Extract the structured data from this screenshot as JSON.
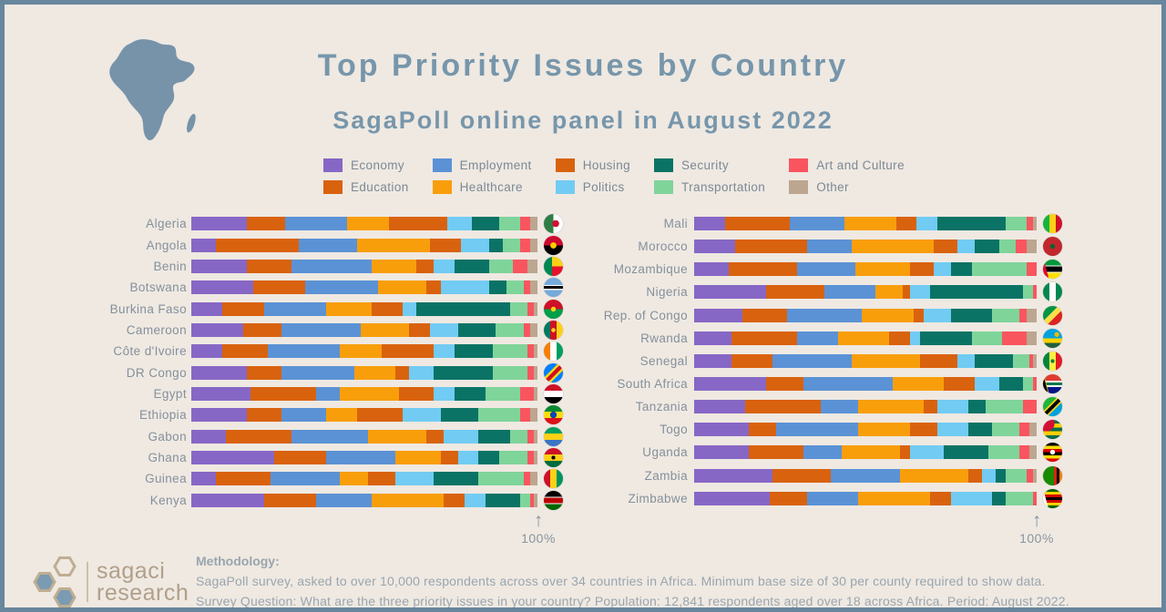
{
  "header": {
    "title": "Top Priority Issues by Country",
    "subtitle": "SagaPoll online panel in August 2022"
  },
  "chart_data": {
    "type": "bar",
    "stacked": true,
    "orientation": "horizontal",
    "unit": "percent",
    "axis_max_label": "100%",
    "xlim": [
      0,
      100
    ],
    "legend_rows": 2,
    "categories": [
      "Economy",
      "Education",
      "Employment",
      "Healthcare",
      "Housing",
      "Politics",
      "Security",
      "Transportation",
      "Art and Culture",
      "Other"
    ],
    "colors": [
      "#8767C5",
      "#D9620E",
      "#5B92D5",
      "#F89E0B",
      "#D9620E",
      "#72CBF3",
      "#0B7365",
      "#7FD49A",
      "#F9555F",
      "#BCA68F"
    ],
    "panels": [
      {
        "side": "left",
        "countries": [
          {
            "name": "Algeria",
            "values": [
              16,
              11,
              18,
              12,
              17,
              7,
              8,
              6,
              3,
              2
            ],
            "flag_css": "radial-gradient(circle at 62% 50%, #d21034 0 22%, rgba(0,0,0,0) 23%), linear-gradient(90deg,#2e7d44 50%,#ffffff 50%)"
          },
          {
            "name": "Angola",
            "values": [
              7,
              24,
              17,
              21,
              9,
              8,
              4,
              5,
              3,
              2
            ],
            "flag_css": "radial-gradient(circle at 50% 50%, #ffcb00 0 22%, rgba(0,0,0,0) 23%), linear-gradient(180deg,#cc092f 50%,#000000 50%)"
          },
          {
            "name": "Benin",
            "values": [
              16,
              13,
              23,
              13,
              5,
              6,
              10,
              7,
              4,
              3
            ],
            "flag_css": "linear-gradient(90deg,#008751 42%,rgba(0,0,0,0) 42%), linear-gradient(180deg,#fcd116 50%,#e8112d 50%)"
          },
          {
            "name": "Botswana",
            "values": [
              18,
              15,
              21,
              14,
              4,
              14,
              5,
              5,
              2,
              2
            ],
            "flag_css": "linear-gradient(180deg,#75aadb 38%,#ffffff 38%,#ffffff 44%,#000000 44%,#000000 58%,#ffffff 58%,#ffffff 64%,#75aadb 64%)"
          },
          {
            "name": "Burkina Faso",
            "values": [
              9,
              12,
              18,
              13,
              9,
              4,
              27,
              5,
              2,
              1
            ],
            "flag_css": "radial-gradient(circle at 50% 50%, #fcd116 0 18%, rgba(0,0,0,0) 19%), linear-gradient(180deg,#ce1126 50%,#009e49 50%)"
          },
          {
            "name": "Cameroon",
            "values": [
              15,
              11,
              23,
              14,
              6,
              8,
              11,
              8,
              2,
              2
            ],
            "flag_css": "radial-gradient(circle at 50% 50%, #fcd116 0 15%, rgba(0,0,0,0) 16%), linear-gradient(90deg,#007a5e 33%,#ce1126 33%,#ce1126 67%,#fcd116 67%)"
          },
          {
            "name": "Côte d'Ivoire",
            "values": [
              9,
              13,
              21,
              12,
              15,
              6,
              11,
              10,
              2,
              1
            ],
            "flag_css": "linear-gradient(90deg,#f77f00 33%,#ffffff 33%,#ffffff 67%,#009e60 67%)"
          },
          {
            "name": "DR Congo",
            "values": [
              16,
              10,
              21,
              12,
              4,
              7,
              17,
              10,
              2,
              1
            ],
            "flag_css": "linear-gradient(135deg,#007fff 38%,#f7d618 38%,#f7d618 46%,#ce1021 46%,#ce1021 60%,#f7d618 60%,#f7d618 68%,#007fff 68%)"
          },
          {
            "name": "Egypt",
            "values": [
              17,
              19,
              7,
              17,
              10,
              6,
              9,
              10,
              4,
              1
            ],
            "flag_css": "linear-gradient(180deg,#ce1126 33%,#ffffff 33%,#ffffff 67%,#000000 67%)"
          },
          {
            "name": "Ethiopia",
            "values": [
              16,
              10,
              13,
              9,
              13,
              11,
              11,
              12,
              3,
              2
            ],
            "flag_css": "radial-gradient(circle at 50% 50%, #0f47af 0 24%, rgba(0,0,0,0) 25%), linear-gradient(180deg,#078930 33%,#fcdd09 33%,#fcdd09 67%,#da121a 67%)"
          },
          {
            "name": "Gabon",
            "values": [
              10,
              19,
              22,
              17,
              5,
              10,
              9,
              5,
              2,
              1
            ],
            "flag_css": "linear-gradient(180deg,#009e60 33%,#fcd116 33%,#fcd116 67%,#3a75c4 67%)"
          },
          {
            "name": "Ghana",
            "values": [
              24,
              15,
              20,
              13,
              5,
              6,
              6,
              8,
              2,
              1
            ],
            "flag_css": "radial-gradient(circle at 50% 50%, #000000 0 14%, rgba(0,0,0,0) 15%), linear-gradient(180deg,#ce1126 33%,#fcd116 33%,#fcd116 67%,#006b3f 67%)"
          },
          {
            "name": "Guinea",
            "values": [
              7,
              16,
              20,
              8,
              8,
              11,
              13,
              13,
              2,
              2
            ],
            "flag_css": "linear-gradient(90deg,#ce1126 33%,#fcd116 33%,#fcd116 67%,#009460 67%)"
          },
          {
            "name": "Kenya",
            "values": [
              21,
              15,
              16,
              21,
              6,
              6,
              10,
              3,
              1,
              1
            ],
            "flag_css": "linear-gradient(180deg,#000000 30%,#ffffff 30%,#ffffff 36%,#bb0000 36%,#bb0000 64%,#ffffff 64%,#ffffff 70%,#006600 70%)"
          }
        ]
      },
      {
        "side": "right",
        "countries": [
          {
            "name": "Mali",
            "values": [
              9,
              19,
              16,
              15,
              6,
              6,
              20,
              6,
              2,
              1
            ],
            "flag_css": "linear-gradient(90deg,#14b53a 33%,#fcd116 33%,#fcd116 67%,#ce1126 67%)"
          },
          {
            "name": "Morocco",
            "values": [
              12,
              21,
              13,
              24,
              7,
              5,
              7,
              5,
              3,
              3
            ],
            "flag_css": "radial-gradient(circle at 50% 50%, #006233 0 17%, rgba(0,0,0,0) 18%), linear-gradient(0deg,#c1272d,#c1272d)"
          },
          {
            "name": "Mozambique",
            "values": [
              10,
              20,
              17,
              16,
              7,
              5,
              6,
              16,
              3,
              0
            ],
            "flag_css": "linear-gradient(75deg,#e4002b 24%, rgba(0,0,0,0) 24%), linear-gradient(180deg,#009739 30%,#ffffff 30%,#ffffff 36%,#000000 36%,#000000 64%,#ffffff 64%,#ffffff 70%,#fedd00 70%)"
          },
          {
            "name": "Nigeria",
            "values": [
              21,
              17,
              15,
              8,
              2,
              6,
              27,
              3,
              1,
              0
            ],
            "flag_css": "linear-gradient(90deg,#008751 33%,#ffffff 33%,#ffffff 67%,#008751 67%)"
          },
          {
            "name": "Rep. of Congo",
            "values": [
              14,
              13,
              22,
              15,
              3,
              8,
              12,
              8,
              2,
              3
            ],
            "flag_css": "linear-gradient(135deg,#009543 40%,#fbde4a 40%,#fbde4a 60%,#dc241f 60%)"
          },
          {
            "name": "Rwanda",
            "values": [
              11,
              19,
              12,
              15,
              6,
              3,
              15,
              9,
              7,
              3
            ],
            "flag_css": "radial-gradient(circle at 72% 30%, #e5be01 0 12%, rgba(0,0,0,0) 13%), linear-gradient(180deg,#00a1de 50%,#fad201 50%,#fad201 75%,#20603d 75%)"
          },
          {
            "name": "Senegal",
            "values": [
              11,
              12,
              23,
              20,
              11,
              5,
              11,
              5,
              1,
              1
            ],
            "flag_css": "radial-gradient(circle at 50% 50%, #00853f 0 14%, rgba(0,0,0,0) 15%), linear-gradient(90deg,#00853f 33%,#fdef42 33%,#fdef42 67%,#e31b23 67%)"
          },
          {
            "name": "South Africa",
            "values": [
              21,
              11,
              26,
              15,
              9,
              7,
              7,
              3,
              1,
              0
            ],
            "flag_css": "linear-gradient(75deg,#000000 20%, #ffb612 23%, rgba(0,0,0,0) 26%), linear-gradient(180deg,#e03c31 33%,#ffffff 33%,#ffffff 42%,#007749 42%,#007749 58%,#ffffff 58%,#ffffff 67%,#001489 67%)"
          },
          {
            "name": "Tanzania",
            "values": [
              15,
              22,
              11,
              19,
              4,
              9,
              5,
              11,
              4,
              0
            ],
            "flag_css": "linear-gradient(135deg,#1eb53a 38%,#fcd116 38%,#fcd116 44%,#000000 44%,#000000 56%,#fcd116 56%,#fcd116 62%,#00a3dd 62%)"
          },
          {
            "name": "Togo",
            "values": [
              16,
              8,
              24,
              15,
              8,
              9,
              7,
              8,
              3,
              2
            ],
            "flag_css": "radial-gradient(circle at 18% 18%, #d21034 0 36%, rgba(0,0,0,0) 37%), linear-gradient(180deg,#006a4e 20%,#ffce00 20%,#ffce00 40%,#006a4e 40%,#006a4e 60%,#ffce00 60%,#ffce00 80%,#006a4e 80%)"
          },
          {
            "name": "Uganda",
            "values": [
              16,
              16,
              11,
              17,
              3,
              10,
              13,
              9,
              3,
              2
            ],
            "flag_css": "radial-gradient(circle at 50% 50%, #ffffff 0 18%, rgba(0,0,0,0) 19%), linear-gradient(180deg,#000000 17%,#fcdc04 17%,#fcdc04 33%,#d90000 33%,#d90000 50%,#000000 50%,#000000 67%,#fcdc04 67%,#fcdc04 83%,#d90000 83%)"
          },
          {
            "name": "Zambia",
            "values": [
              23,
              17,
              20,
              20,
              4,
              4,
              3,
              6,
              2,
              1
            ],
            "flag_css": "linear-gradient(90deg,#198a00 58%,#de2010 58%,#de2010 72%,#000000 72%,#000000 86%,#ef7d00 86%)"
          },
          {
            "name": "Zimbabwe",
            "values": [
              22,
              11,
              15,
              21,
              6,
              12,
              4,
              8,
              1,
              0
            ],
            "flag_css": "linear-gradient(75deg,#ffffff 22%, rgba(0,0,0,0) 22%), linear-gradient(180deg,#006400 14%,#ffd200 14%,#ffd200 28%,#d40000 28%,#d40000 42%,#000000 42%,#000000 58%,#d40000 58%,#d40000 72%,#ffd200 72%,#ffd200 86%,#006400 86%)"
          }
        ]
      }
    ]
  },
  "footer": {
    "methodology_title": "Methodology:",
    "line1": "SagaPoll survey, asked to over 10,000 respondents across over 34 countries in Africa. Minimum base size of 30 per county required to show data.",
    "line2": "Survey Question: What are the three priority issues in your country? Population: 12,841 respondents aged over 18 across Africa. Period: August 2022.",
    "logo_word1": "sagaci",
    "logo_word2": "research"
  }
}
